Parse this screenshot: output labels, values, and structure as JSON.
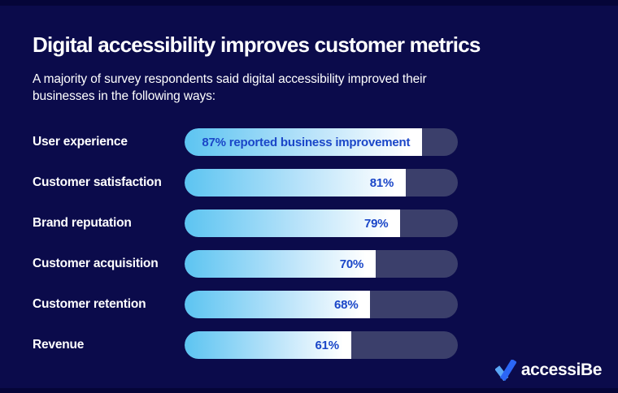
{
  "header": {
    "title": "Digital accessibility improves customer metrics",
    "subtitle": "A majority of survey respondents said digital accessibility improved their businesses in the following ways:"
  },
  "chart_data": {
    "type": "bar",
    "orientation": "horizontal",
    "title": "Digital accessibility improves customer metrics",
    "subtitle": "A majority of survey respondents said digital accessibility improved their businesses in the following ways:",
    "categories": [
      "User experience",
      "Customer satisfaction",
      "Brand reputation",
      "Customer acquisition",
      "Customer retention",
      "Revenue"
    ],
    "values": [
      87,
      81,
      79,
      70,
      68,
      61
    ],
    "bar_labels": [
      "87% reported business improvement",
      "81%",
      "79%",
      "70%",
      "68%",
      "61%"
    ],
    "xlim": [
      0,
      100
    ],
    "grid": false,
    "legend": false
  },
  "logo": {
    "text": "accessiBe",
    "icon": "accessibe-check-icon"
  },
  "colors": {
    "background": "#0B0B4B",
    "edge": "#050538",
    "bar_track": "#3B3F6B",
    "bar_gradient_start": "#5CC4F1",
    "bar_gradient_mid": "#BCE4FA",
    "bar_gradient_end": "#FFFFFF",
    "value_text": "#1A46C8",
    "text": "#FFFFFF",
    "logo_check_light": "#5AA7F7",
    "logo_check_dark": "#2B66F6"
  }
}
